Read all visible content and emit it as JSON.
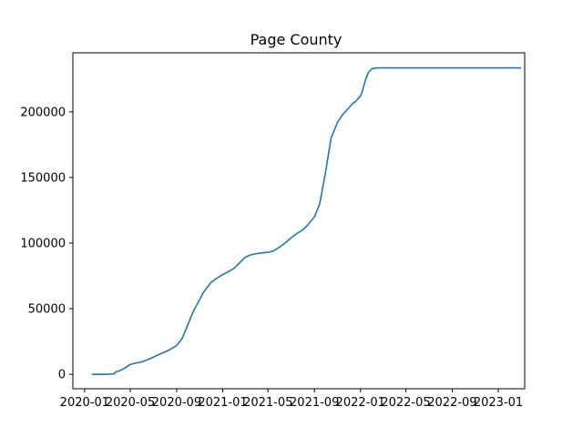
{
  "chart_data": {
    "type": "line",
    "title": "Page County",
    "xlabel": "",
    "ylabel": "",
    "x_tick_labels": [
      "2020-01",
      "2020-05",
      "2020-09",
      "2021-01",
      "2021-05",
      "2021-09",
      "2022-01",
      "2022-05",
      "2022-09",
      "2023-01"
    ],
    "y_tick_values": [
      0,
      50000,
      100000,
      150000,
      200000
    ],
    "y_tick_labels": [
      "0",
      "50000",
      "100000",
      "150000",
      "200000"
    ],
    "xlim": [
      "2019-12-01",
      "2023-03-12"
    ],
    "ylim": [
      -11000,
      245000
    ],
    "grid": false,
    "line_color": "#1f77b4",
    "series": [
      {
        "x": [
          "2020-01-22",
          "2020-03-01",
          "2020-03-20",
          "2020-03-24",
          "2020-04-01",
          "2020-04-15",
          "2020-05-01",
          "2020-05-15",
          "2020-06-01",
          "2020-06-15",
          "2020-07-01",
          "2020-07-15",
          "2020-08-01",
          "2020-08-15",
          "2020-09-01",
          "2020-09-15",
          "2020-10-01",
          "2020-10-15",
          "2020-11-01",
          "2020-11-10",
          "2020-11-20",
          "2020-12-01",
          "2020-12-15",
          "2021-01-01",
          "2021-01-15",
          "2021-02-01",
          "2021-02-15",
          "2021-03-01",
          "2021-03-15",
          "2021-04-01",
          "2021-04-15",
          "2021-05-01",
          "2021-05-15",
          "2021-06-01",
          "2021-06-15",
          "2021-07-01",
          "2021-07-15",
          "2021-08-01",
          "2021-08-15",
          "2021-09-01",
          "2021-09-15",
          "2021-10-01",
          "2021-10-15",
          "2021-11-01",
          "2021-11-15",
          "2021-12-01",
          "2021-12-10",
          "2021-12-20",
          "2021-12-25",
          "2022-01-01",
          "2022-01-05",
          "2022-01-10",
          "2022-01-15",
          "2022-01-22",
          "2022-02-01",
          "2022-02-15",
          "2022-03-01",
          "2022-03-15",
          "2022-04-01",
          "2022-04-10",
          "2022-04-20",
          "2022-05-01",
          "2022-05-10",
          "2022-06-01",
          "2022-09-01",
          "2023-01-01",
          "2023-03-01"
        ],
        "y": [
          0,
          0,
          500,
          2000,
          2500,
          4500,
          7500,
          8500,
          9500,
          11000,
          13000,
          15000,
          17000,
          19000,
          22000,
          27000,
          38000,
          48000,
          57000,
          62000,
          66000,
          70000,
          73000,
          76000,
          78000,
          81000,
          85000,
          89000,
          91000,
          92000,
          92500,
          93000,
          94000,
          97000,
          100000,
          104000,
          107000,
          110000,
          114000,
          120000,
          130000,
          155000,
          180000,
          192000,
          198000,
          203000,
          206000,
          208000,
          210000,
          212000,
          215000,
          220000,
          225000,
          230000,
          233000,
          233500,
          233500,
          233500,
          233500,
          233500,
          233500,
          233500,
          233500,
          233500,
          233500,
          233500,
          233500
        ]
      }
    ]
  }
}
